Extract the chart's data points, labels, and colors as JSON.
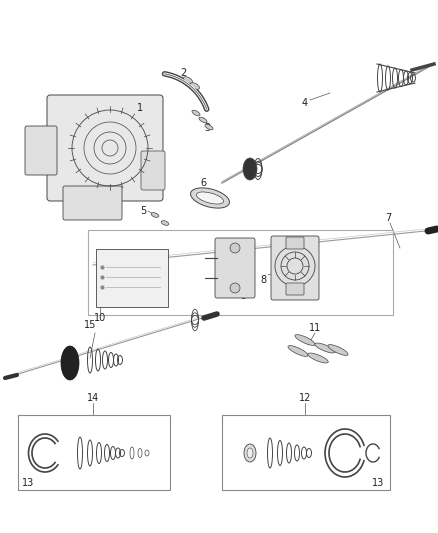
{
  "bg_color": "#ffffff",
  "lc": "#444444",
  "lc2": "#666666",
  "lc3": "#999999",
  "label_fs": 7,
  "fig_w": 4.38,
  "fig_h": 5.33,
  "dpi": 100
}
